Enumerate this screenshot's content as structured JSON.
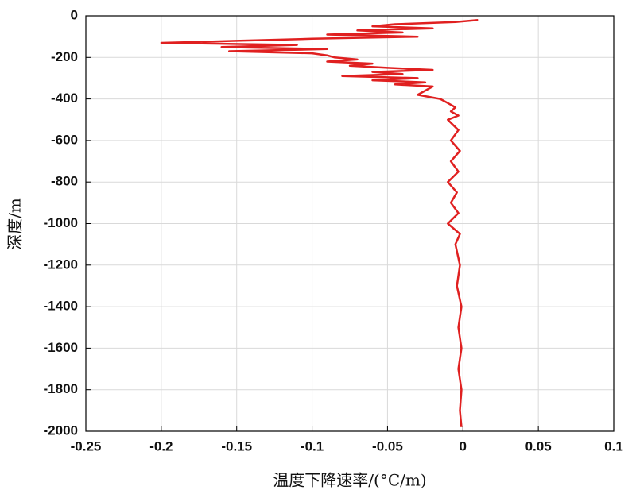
{
  "chart_data": {
    "type": "line",
    "xlabel": "温度下降速率/(°C/m)",
    "ylabel": "深度/m",
    "color": "#e02020",
    "grid": true,
    "xlim": [
      -0.25,
      0.1
    ],
    "xticks": [
      -0.25,
      -0.2,
      -0.15,
      -0.1,
      -0.05,
      0,
      0.05,
      0.1
    ],
    "ylim": [
      -2000,
      0
    ],
    "yticks": [
      0,
      -200,
      -400,
      -600,
      -800,
      -1000,
      -1200,
      -1400,
      -1600,
      -1800,
      -2000
    ],
    "x": [
      0.01,
      -0.005,
      -0.045,
      -0.06,
      -0.02,
      -0.07,
      -0.04,
      -0.09,
      -0.03,
      -0.1,
      -0.15,
      -0.2,
      -0.11,
      -0.16,
      -0.09,
      -0.155,
      -0.1,
      -0.09,
      -0.085,
      -0.07,
      -0.09,
      -0.06,
      -0.075,
      -0.05,
      -0.02,
      -0.06,
      -0.04,
      -0.08,
      -0.03,
      -0.06,
      -0.025,
      -0.045,
      -0.02,
      -0.025,
      -0.03,
      -0.015,
      -0.01,
      -0.005,
      -0.008,
      -0.003,
      -0.01,
      -0.003,
      -0.008,
      -0.002,
      -0.008,
      -0.003,
      -0.01,
      -0.004,
      -0.008,
      -0.003,
      -0.01,
      -0.002,
      -0.005,
      -0.002,
      -0.004,
      -0.001,
      -0.003,
      -0.001,
      -0.003,
      -0.001,
      -0.002,
      -0.001
    ],
    "values": [
      -20,
      -30,
      -40,
      -50,
      -60,
      -70,
      -80,
      -90,
      -100,
      -110,
      -120,
      -130,
      -140,
      -150,
      -160,
      -170,
      -180,
      -190,
      -200,
      -210,
      -220,
      -230,
      -240,
      -250,
      -260,
      -270,
      -280,
      -290,
      -300,
      -310,
      -320,
      -330,
      -340,
      -360,
      -380,
      -400,
      -420,
      -440,
      -460,
      -480,
      -500,
      -550,
      -600,
      -650,
      -700,
      -750,
      -800,
      -850,
      -900,
      -950,
      -1000,
      -1050,
      -1100,
      -1200,
      -1300,
      -1400,
      -1500,
      -1600,
      -1700,
      -1800,
      -1900,
      -1980
    ]
  }
}
